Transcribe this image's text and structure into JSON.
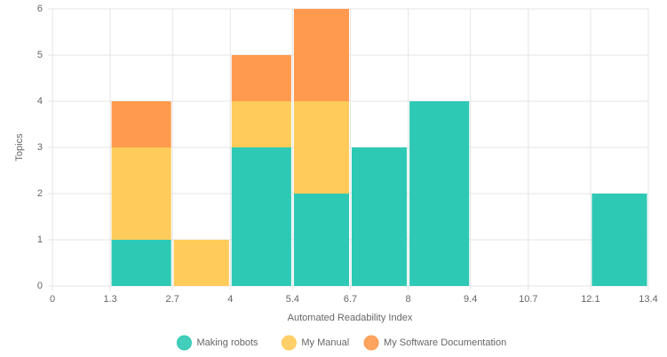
{
  "chart_data": {
    "type": "histogram",
    "xlabel": "Automated Readability Index",
    "ylabel": "Topics",
    "bins": [
      0,
      1.3,
      2.7,
      4,
      5.4,
      6.7,
      8,
      9.4,
      10.7,
      12.1,
      13.4
    ],
    "series": [
      {
        "name": "Making robots",
        "color": "#2ec9b4",
        "values": [
          0,
          1,
          0,
          3,
          2,
          3,
          4,
          0,
          0,
          2
        ]
      },
      {
        "name": "My Manual",
        "color": "#ffcb5a",
        "values": [
          0,
          2,
          1,
          1,
          2,
          0,
          0,
          0,
          0,
          0
        ]
      },
      {
        "name": "My Software Documentation",
        "color": "#ff9a4e",
        "values": [
          0,
          1,
          0,
          1,
          2,
          0,
          0,
          0,
          0,
          0
        ]
      }
    ],
    "stacked": true,
    "xlim": [
      0,
      13.4
    ],
    "xticks": [
      0,
      1.3,
      2.7,
      4,
      5.4,
      6.7,
      8,
      9.4,
      10.7,
      12.1,
      13.4
    ],
    "ylim": [
      0,
      6
    ],
    "yticks": [
      0,
      1,
      2,
      3,
      4,
      5,
      6
    ],
    "grid": true,
    "legend": "bottom"
  }
}
